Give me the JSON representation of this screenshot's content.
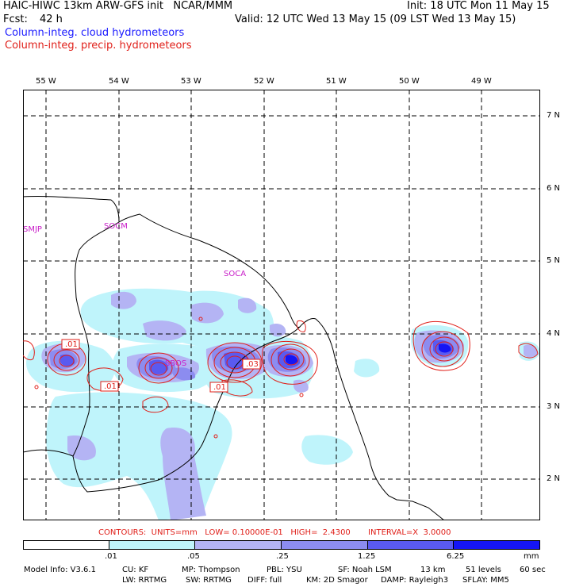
{
  "header": {
    "title_left": "HAIC-HIWC 13km ARW-GFS init   NCAR/MMM",
    "init": "Init: 18 UTC Mon 11 May 15",
    "fcst_label": "Fcst:",
    "fcst_value": "42 h",
    "valid": "Valid: 12 UTC Wed 13 May 15 (09 LST Wed 13 May 15)",
    "field_cloud": "Column-integ. cloud hydrometeors",
    "field_precip": "Column-integ. precip. hydrometeors"
  },
  "map": {
    "lon_labels": [
      "55 W",
      "54 W",
      "53 W",
      "52 W",
      "51 W",
      "50 W",
      "49 W"
    ],
    "lat_labels": [
      "7 N",
      "6 N",
      "5 N",
      "4 N",
      "3 N",
      "2 N"
    ],
    "stations": [
      "SMJP",
      "SOCM",
      "SOCA",
      "SBOS"
    ],
    "contour_labels": [
      ".01",
      ".01",
      ".01",
      ".03"
    ]
  },
  "contour_info": "CONTOURS:  UNITS=mm   LOW= 0.10000E-01   HIGH=  2.4300       INTERVAL=X  3.0000",
  "colorbar": {
    "ticks": [
      ".01",
      ".05",
      ".25",
      "1.25",
      "6.25"
    ],
    "units": "mm",
    "colors": [
      "#ffffff",
      "#bff4fb",
      "#b4b4f4",
      "#8c8cf0",
      "#5a5af0",
      "#1515f5"
    ]
  },
  "footer": {
    "line1": [
      "Model Info: V3.6.1",
      "CU: KF",
      "MP: Thompson",
      "PBL: YSU",
      "SF: Noah LSM",
      "13 km",
      "51 levels",
      "60 sec"
    ],
    "line2": [
      "LW: RRTMG",
      "SW: RRTMG",
      "DIFF: full",
      "KM: 2D Smagor",
      "DAMP: Rayleigh3",
      "SFLAY: MM5"
    ]
  }
}
